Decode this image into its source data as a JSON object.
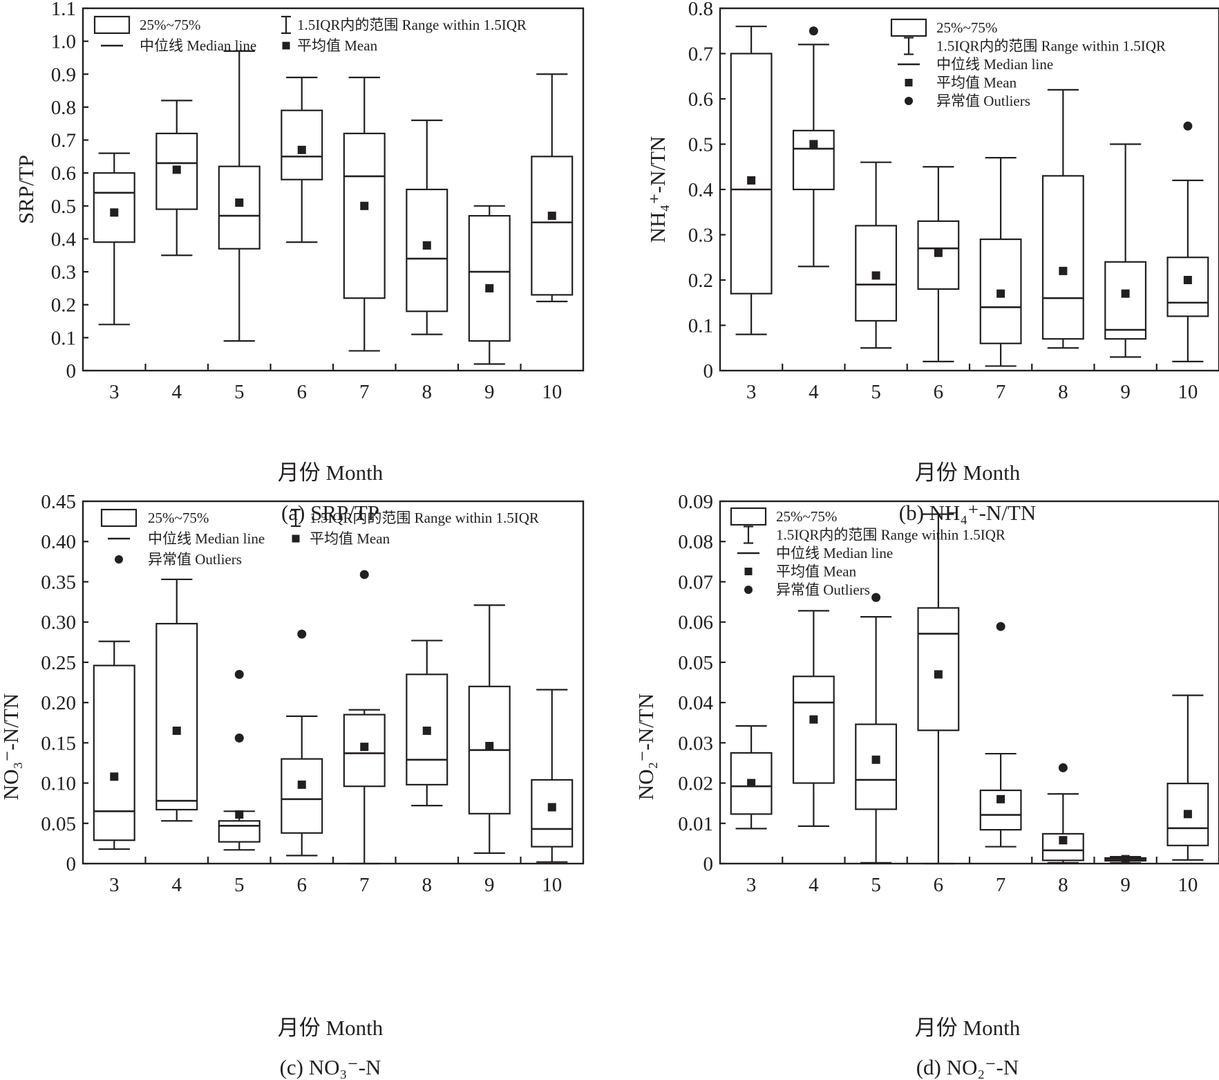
{
  "chart_data": [
    {
      "id": "a",
      "type": "boxplot",
      "caption": "(a) SRP/TP",
      "ylabel": "SRP/TP",
      "xlabel": "月份 Month",
      "ylim": [
        0,
        1.1
      ],
      "yticks": [
        "0",
        "0.1",
        "0.2",
        "0.3",
        "0.4",
        "0.5",
        "0.6",
        "0.7",
        "0.8",
        "0.9",
        "1.0",
        "1.1"
      ],
      "ytick_values": [
        0,
        0.1,
        0.2,
        0.3,
        0.4,
        0.5,
        0.6,
        0.7,
        0.8,
        0.9,
        1.0,
        1.1
      ],
      "categories": [
        "3",
        "4",
        "5",
        "6",
        "7",
        "8",
        "9",
        "10"
      ],
      "legend": {
        "layout": "two-column",
        "placement": "top",
        "items": [
          {
            "symbol": "box",
            "label": "25%~75%"
          },
          {
            "symbol": "whisker",
            "label": "1.5IQR内的范围 Range within 1.5IQR"
          },
          {
            "symbol": "median",
            "label": "中位线 Median line"
          },
          {
            "symbol": "mean",
            "label": "平均值 Mean"
          }
        ]
      },
      "boxes": [
        {
          "month": "3",
          "whisker_high": 0.66,
          "q3": 0.6,
          "median": 0.54,
          "q1": 0.39,
          "whisker_low": 0.14,
          "mean": 0.48,
          "outliers": []
        },
        {
          "month": "4",
          "whisker_high": 0.82,
          "q3": 0.72,
          "median": 0.63,
          "q1": 0.49,
          "whisker_low": 0.35,
          "mean": 0.61,
          "outliers": []
        },
        {
          "month": "5",
          "whisker_high": 0.97,
          "q3": 0.62,
          "median": 0.47,
          "q1": 0.37,
          "whisker_low": 0.09,
          "mean": 0.51,
          "outliers": []
        },
        {
          "month": "6",
          "whisker_high": 0.89,
          "q3": 0.79,
          "median": 0.65,
          "q1": 0.58,
          "whisker_low": 0.39,
          "mean": 0.67,
          "outliers": []
        },
        {
          "month": "7",
          "whisker_high": 0.89,
          "q3": 0.72,
          "median": 0.59,
          "q1": 0.22,
          "whisker_low": 0.06,
          "mean": 0.5,
          "outliers": []
        },
        {
          "month": "8",
          "whisker_high": 0.76,
          "q3": 0.55,
          "median": 0.34,
          "q1": 0.18,
          "whisker_low": 0.11,
          "mean": 0.38,
          "outliers": []
        },
        {
          "month": "9",
          "whisker_high": 0.5,
          "q3": 0.47,
          "median": 0.3,
          "q1": 0.09,
          "whisker_low": 0.02,
          "mean": 0.25,
          "outliers": []
        },
        {
          "month": "10",
          "whisker_high": 0.9,
          "q3": 0.65,
          "median": 0.45,
          "q1": 0.23,
          "whisker_low": 0.21,
          "mean": 0.47,
          "outliers": []
        }
      ]
    },
    {
      "id": "b",
      "type": "boxplot",
      "caption": "(b) NH₄⁺-N/TN",
      "ylabel": "NH₄⁺-N/TN",
      "xlabel": "月份 Month",
      "ylim": [
        0,
        0.8
      ],
      "yticks": [
        "0",
        "0.1",
        "0.2",
        "0.3",
        "0.4",
        "0.5",
        "0.6",
        "0.7",
        "0.8"
      ],
      "ytick_values": [
        0,
        0.1,
        0.2,
        0.3,
        0.4,
        0.5,
        0.6,
        0.7,
        0.8
      ],
      "categories": [
        "3",
        "4",
        "5",
        "6",
        "7",
        "8",
        "9",
        "10"
      ],
      "legend": {
        "layout": "one-column",
        "placement": "top-right",
        "items": [
          {
            "symbol": "box",
            "label": "25%~75%"
          },
          {
            "symbol": "whisker",
            "label": "1.5IQR内的范围 Range within 1.5IQR"
          },
          {
            "symbol": "median",
            "label": "中位线 Median line"
          },
          {
            "symbol": "mean",
            "label": "平均值 Mean"
          },
          {
            "symbol": "outlier",
            "label": "异常值 Outliers"
          }
        ]
      },
      "boxes": [
        {
          "month": "3",
          "whisker_high": 0.76,
          "q3": 0.7,
          "median": 0.4,
          "q1": 0.17,
          "whisker_low": 0.08,
          "mean": 0.42,
          "outliers": []
        },
        {
          "month": "4",
          "whisker_high": 0.72,
          "q3": 0.53,
          "median": 0.49,
          "q1": 0.4,
          "whisker_low": 0.23,
          "mean": 0.5,
          "outliers": [
            0.75
          ]
        },
        {
          "month": "5",
          "whisker_high": 0.46,
          "q3": 0.32,
          "median": 0.19,
          "q1": 0.11,
          "whisker_low": 0.05,
          "mean": 0.21,
          "outliers": []
        },
        {
          "month": "6",
          "whisker_high": 0.45,
          "q3": 0.33,
          "median": 0.27,
          "q1": 0.18,
          "whisker_low": 0.02,
          "mean": 0.26,
          "outliers": []
        },
        {
          "month": "7",
          "whisker_high": 0.47,
          "q3": 0.29,
          "median": 0.14,
          "q1": 0.06,
          "whisker_low": 0.01,
          "mean": 0.17,
          "outliers": []
        },
        {
          "month": "8",
          "whisker_high": 0.62,
          "q3": 0.43,
          "median": 0.16,
          "q1": 0.07,
          "whisker_low": 0.05,
          "mean": 0.22,
          "outliers": []
        },
        {
          "month": "9",
          "whisker_high": 0.5,
          "q3": 0.24,
          "median": 0.09,
          "q1": 0.07,
          "whisker_low": 0.03,
          "mean": 0.17,
          "outliers": []
        },
        {
          "month": "10",
          "whisker_high": 0.42,
          "q3": 0.25,
          "median": 0.15,
          "q1": 0.12,
          "whisker_low": 0.02,
          "mean": 0.2,
          "outliers": [
            0.54
          ]
        }
      ]
    },
    {
      "id": "c",
      "type": "boxplot",
      "caption": "(c) NO₃⁻-N",
      "ylabel": "NO₃⁻-N/TN",
      "xlabel": "月份 Month",
      "ylim": [
        0,
        0.45
      ],
      "yticks": [
        "0",
        "0.05",
        "0.10",
        "0.15",
        "0.20",
        "0.25",
        "0.30",
        "0.35",
        "0.40",
        "0.45"
      ],
      "ytick_values": [
        0,
        0.05,
        0.1,
        0.15,
        0.2,
        0.25,
        0.3,
        0.35,
        0.4,
        0.45
      ],
      "categories": [
        "3",
        "4",
        "5",
        "6",
        "7",
        "8",
        "9",
        "10"
      ],
      "legend": {
        "layout": "two-column",
        "placement": "top",
        "items": [
          {
            "symbol": "box",
            "label": "25%~75%"
          },
          {
            "symbol": "whisker",
            "label": "1.5IQR内的范围 Range within 1.5IQR"
          },
          {
            "symbol": "median",
            "label": "中位线 Median line"
          },
          {
            "symbol": "mean",
            "label": "平均值 Mean"
          },
          {
            "symbol": "outlier",
            "label": "异常值 Outliers"
          }
        ]
      },
      "boxes": [
        {
          "month": "3",
          "whisker_high": 0.276,
          "q3": 0.246,
          "median": 0.065,
          "q1": 0.029,
          "whisker_low": 0.018,
          "mean": 0.108,
          "outliers": []
        },
        {
          "month": "4",
          "whisker_high": 0.353,
          "q3": 0.298,
          "median": 0.078,
          "q1": 0.067,
          "whisker_low": 0.053,
          "mean": 0.165,
          "outliers": []
        },
        {
          "month": "5",
          "whisker_high": 0.065,
          "q3": 0.053,
          "median": 0.047,
          "q1": 0.027,
          "whisker_low": 0.017,
          "mean": 0.061,
          "outliers": [
            0.235,
            0.156
          ]
        },
        {
          "month": "6",
          "whisker_high": 0.183,
          "q3": 0.13,
          "median": 0.08,
          "q1": 0.038,
          "whisker_low": 0.01,
          "mean": 0.098,
          "outliers": [
            0.285
          ]
        },
        {
          "month": "7",
          "whisker_high": 0.191,
          "q3": 0.185,
          "median": 0.137,
          "q1": 0.096,
          "whisker_low": 0.0,
          "mean": 0.145,
          "outliers": [
            0.359
          ]
        },
        {
          "month": "8",
          "whisker_high": 0.277,
          "q3": 0.235,
          "median": 0.129,
          "q1": 0.098,
          "whisker_low": 0.072,
          "mean": 0.165,
          "outliers": []
        },
        {
          "month": "9",
          "whisker_high": 0.321,
          "q3": 0.22,
          "median": 0.141,
          "q1": 0.062,
          "whisker_low": 0.013,
          "mean": 0.146,
          "outliers": []
        },
        {
          "month": "10",
          "whisker_high": 0.216,
          "q3": 0.104,
          "median": 0.043,
          "q1": 0.021,
          "whisker_low": 0.002,
          "mean": 0.07,
          "outliers": []
        }
      ]
    },
    {
      "id": "d",
      "type": "boxplot",
      "caption": "(d) NO₂⁻-N",
      "ylabel": "NO₂⁻-N/TN",
      "xlabel": "月份 Month",
      "ylim": [
        0,
        0.09
      ],
      "yticks": [
        "0",
        "0.01",
        "0.02",
        "0.03",
        "0.04",
        "0.05",
        "0.06",
        "0.07",
        "0.08",
        "0.09"
      ],
      "ytick_values": [
        0,
        0.01,
        0.02,
        0.03,
        0.04,
        0.05,
        0.06,
        0.07,
        0.08,
        0.09
      ],
      "categories": [
        "3",
        "4",
        "5",
        "6",
        "7",
        "8",
        "9",
        "10"
      ],
      "legend": {
        "layout": "one-column",
        "placement": "top-left",
        "items": [
          {
            "symbol": "box",
            "label": "25%~75%"
          },
          {
            "symbol": "whisker",
            "label": "1.5IQR内的范围 Range within 1.5IQR"
          },
          {
            "symbol": "median",
            "label": "中位线 Median line"
          },
          {
            "symbol": "mean",
            "label": "平均值 Mean"
          },
          {
            "symbol": "outlier",
            "label": "异常值 Outliers"
          }
        ]
      },
      "boxes": [
        {
          "month": "3",
          "whisker_high": 0.0342,
          "q3": 0.0275,
          "median": 0.0192,
          "q1": 0.0123,
          "whisker_low": 0.0087,
          "mean": 0.02,
          "outliers": []
        },
        {
          "month": "4",
          "whisker_high": 0.0628,
          "q3": 0.0465,
          "median": 0.04,
          "q1": 0.02,
          "whisker_low": 0.0093,
          "mean": 0.0358,
          "outliers": []
        },
        {
          "month": "5",
          "whisker_high": 0.0613,
          "q3": 0.0346,
          "median": 0.0208,
          "q1": 0.0135,
          "whisker_low": 0.0002,
          "mean": 0.0258,
          "outliers": [
            0.0661
          ]
        },
        {
          "month": "6",
          "whisker_high": 0.0868,
          "q3": 0.0635,
          "median": 0.0571,
          "q1": 0.0331,
          "whisker_low": 0.0,
          "mean": 0.047,
          "outliers": []
        },
        {
          "month": "7",
          "whisker_high": 0.0273,
          "q3": 0.0182,
          "median": 0.0121,
          "q1": 0.0084,
          "whisker_low": 0.0042,
          "mean": 0.016,
          "outliers": [
            0.0589
          ]
        },
        {
          "month": "8",
          "whisker_high": 0.0173,
          "q3": 0.0074,
          "median": 0.0033,
          "q1": 0.0008,
          "whisker_low": 0.0002,
          "mean": 0.0058,
          "outliers": [
            0.0238
          ]
        },
        {
          "month": "9",
          "whisker_high": 0.0017,
          "q3": 0.0014,
          "median": 0.0011,
          "q1": 0.0007,
          "whisker_low": 0.0002,
          "mean": 0.0011,
          "outliers": []
        },
        {
          "month": "10",
          "whisker_high": 0.0418,
          "q3": 0.0199,
          "median": 0.0088,
          "q1": 0.0045,
          "whisker_low": 0.0009,
          "mean": 0.0123,
          "outliers": []
        }
      ]
    }
  ]
}
